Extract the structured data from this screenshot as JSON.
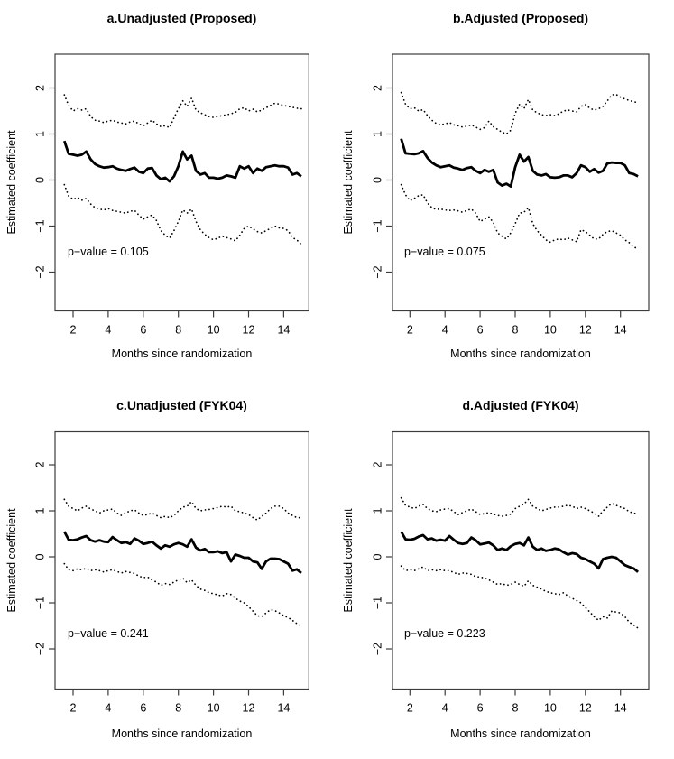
{
  "figure": {
    "background": "#ffffff",
    "line_color": "#000000",
    "frame_color": "#3c3c3c",
    "axes": {
      "xlabel": "Months since randomization",
      "ylabel": "Estimated coefficient",
      "x_ticks": [
        2,
        4,
        6,
        8,
        10,
        12,
        14
      ],
      "x_tick_labels": [
        "2",
        "4",
        "6",
        "8",
        "10",
        "12",
        "14"
      ],
      "y_ticks": [
        -2,
        -1,
        0,
        1,
        2
      ],
      "y_tick_labels": [
        "−2",
        "−1",
        "0",
        "1",
        "2"
      ]
    }
  },
  "x_months_shared": [
    1.5,
    1.75,
    2,
    2.25,
    2.5,
    2.75,
    3,
    3.25,
    3.5,
    3.75,
    4,
    4.25,
    4.5,
    4.75,
    5,
    5.25,
    5.5,
    5.75,
    6,
    6.25,
    6.5,
    6.75,
    7,
    7.25,
    7.5,
    7.75,
    8,
    8.25,
    8.5,
    8.75,
    9,
    9.25,
    9.5,
    9.75,
    10,
    10.25,
    10.5,
    10.75,
    11,
    11.25,
    11.5,
    11.75,
    12,
    12.25,
    12.5,
    12.75,
    13,
    13.25,
    13.5,
    13.75,
    14,
    14.25,
    14.5,
    14.75,
    15
  ],
  "chart_data": [
    {
      "type": "line",
      "panel": "a",
      "title": "a.Unadjusted (Proposed)",
      "p_annotation": "p−value = 0.105",
      "p_value": 0.105,
      "xlabel": "Months since randomization",
      "ylabel": "Estimated coefficient",
      "xlim": [
        1,
        15.5
      ],
      "ylim": [
        -2.85,
        2.75
      ],
      "legend": "none",
      "grid": false,
      "series": [
        {
          "name": "estimate",
          "style": "solid-thick",
          "values": [
            0.85,
            0.57,
            0.55,
            0.53,
            0.55,
            0.62,
            0.45,
            0.35,
            0.3,
            0.27,
            0.28,
            0.3,
            0.25,
            0.22,
            0.2,
            0.24,
            0.27,
            0.18,
            0.15,
            0.25,
            0.26,
            0.1,
            0.02,
            0.05,
            -0.03,
            0.08,
            0.3,
            0.62,
            0.45,
            0.53,
            0.2,
            0.12,
            0.15,
            0.05,
            0.05,
            0.03,
            0.05,
            0.1,
            0.08,
            0.05,
            0.3,
            0.25,
            0.3,
            0.15,
            0.25,
            0.2,
            0.28,
            0.3,
            0.32,
            0.3,
            0.3,
            0.27,
            0.12,
            0.15,
            0.08
          ]
        },
        {
          "name": "upper_ci",
          "style": "dotted",
          "values": [
            1.85,
            1.62,
            1.5,
            1.55,
            1.52,
            1.55,
            1.38,
            1.3,
            1.28,
            1.25,
            1.28,
            1.3,
            1.26,
            1.24,
            1.22,
            1.26,
            1.28,
            1.22,
            1.18,
            1.24,
            1.3,
            1.22,
            1.16,
            1.18,
            1.14,
            1.35,
            1.55,
            1.72,
            1.6,
            1.78,
            1.52,
            1.46,
            1.42,
            1.38,
            1.36,
            1.38,
            1.4,
            1.42,
            1.44,
            1.47,
            1.55,
            1.57,
            1.5,
            1.54,
            1.48,
            1.52,
            1.57,
            1.62,
            1.67,
            1.65,
            1.62,
            1.6,
            1.58,
            1.56,
            1.55
          ]
        },
        {
          "name": "lower_ci",
          "style": "dotted",
          "values": [
            -0.1,
            -0.35,
            -0.42,
            -0.38,
            -0.44,
            -0.4,
            -0.52,
            -0.6,
            -0.63,
            -0.65,
            -0.62,
            -0.66,
            -0.68,
            -0.7,
            -0.72,
            -0.68,
            -0.66,
            -0.76,
            -0.85,
            -0.8,
            -0.76,
            -0.88,
            -1.1,
            -1.2,
            -1.26,
            -1.1,
            -0.9,
            -0.65,
            -0.72,
            -0.63,
            -0.9,
            -1.08,
            -1.18,
            -1.25,
            -1.3,
            -1.26,
            -1.22,
            -1.25,
            -1.28,
            -1.32,
            -1.2,
            -1.05,
            -1.0,
            -1.06,
            -1.12,
            -1.15,
            -1.1,
            -1.05,
            -1.0,
            -1.04,
            -1.05,
            -1.1,
            -1.25,
            -1.3,
            -1.4
          ]
        }
      ]
    },
    {
      "type": "line",
      "panel": "b",
      "title": "b.Adjusted (Proposed)",
      "p_annotation": "p−value = 0.075",
      "p_value": 0.075,
      "xlabel": "Months since randomization",
      "ylabel": "Estimated coefficient",
      "xlim": [
        1,
        15.5
      ],
      "ylim": [
        -2.85,
        2.75
      ],
      "legend": "none",
      "grid": false,
      "series": [
        {
          "name": "estimate",
          "style": "solid-thick",
          "values": [
            0.9,
            0.58,
            0.57,
            0.56,
            0.58,
            0.63,
            0.48,
            0.38,
            0.32,
            0.28,
            0.3,
            0.32,
            0.27,
            0.25,
            0.22,
            0.26,
            0.28,
            0.2,
            0.15,
            0.22,
            0.18,
            0.22,
            -0.05,
            -0.12,
            -0.08,
            -0.14,
            0.28,
            0.55,
            0.4,
            0.5,
            0.2,
            0.12,
            0.1,
            0.13,
            0.06,
            0.05,
            0.06,
            0.1,
            0.1,
            0.06,
            0.15,
            0.32,
            0.28,
            0.18,
            0.24,
            0.16,
            0.2,
            0.36,
            0.38,
            0.37,
            0.37,
            0.32,
            0.15,
            0.13,
            0.08
          ]
        },
        {
          "name": "upper_ci",
          "style": "dotted",
          "values": [
            1.9,
            1.65,
            1.55,
            1.57,
            1.5,
            1.53,
            1.4,
            1.3,
            1.23,
            1.2,
            1.22,
            1.25,
            1.2,
            1.18,
            1.15,
            1.17,
            1.2,
            1.15,
            1.1,
            1.14,
            1.28,
            1.16,
            1.1,
            1.04,
            1.0,
            1.08,
            1.45,
            1.65,
            1.55,
            1.75,
            1.52,
            1.46,
            1.42,
            1.4,
            1.42,
            1.4,
            1.44,
            1.5,
            1.52,
            1.5,
            1.48,
            1.6,
            1.64,
            1.56,
            1.52,
            1.55,
            1.6,
            1.72,
            1.85,
            1.86,
            1.8,
            1.76,
            1.73,
            1.7,
            1.68
          ]
        },
        {
          "name": "lower_ci",
          "style": "dotted",
          "values": [
            -0.1,
            -0.32,
            -0.45,
            -0.4,
            -0.34,
            -0.32,
            -0.5,
            -0.6,
            -0.64,
            -0.63,
            -0.65,
            -0.66,
            -0.65,
            -0.67,
            -0.7,
            -0.66,
            -0.63,
            -0.72,
            -0.9,
            -0.85,
            -0.8,
            -0.92,
            -1.15,
            -1.22,
            -1.28,
            -1.15,
            -0.95,
            -0.72,
            -0.7,
            -0.6,
            -0.95,
            -1.1,
            -1.2,
            -1.3,
            -1.35,
            -1.3,
            -1.28,
            -1.3,
            -1.26,
            -1.3,
            -1.34,
            -1.08,
            -1.12,
            -1.2,
            -1.28,
            -1.28,
            -1.18,
            -1.12,
            -1.1,
            -1.15,
            -1.2,
            -1.3,
            -1.36,
            -1.45,
            -1.5
          ]
        }
      ]
    },
    {
      "type": "line",
      "panel": "c",
      "title": "c.Unadjusted (FYK04)",
      "p_annotation": "p−value = 0.241",
      "p_value": 0.241,
      "xlabel": "Months since randomization",
      "ylabel": "Estimated coefficient",
      "xlim": [
        1,
        15.5
      ],
      "ylim": [
        -2.85,
        2.75
      ],
      "legend": "none",
      "grid": false,
      "series": [
        {
          "name": "estimate",
          "style": "solid-thick",
          "values": [
            0.55,
            0.37,
            0.36,
            0.38,
            0.42,
            0.45,
            0.36,
            0.33,
            0.36,
            0.33,
            0.32,
            0.43,
            0.36,
            0.3,
            0.32,
            0.28,
            0.4,
            0.35,
            0.28,
            0.3,
            0.33,
            0.25,
            0.18,
            0.25,
            0.22,
            0.27,
            0.3,
            0.27,
            0.22,
            0.38,
            0.2,
            0.14,
            0.17,
            0.1,
            0.1,
            0.12,
            0.08,
            0.1,
            -0.1,
            0.05,
            0.02,
            -0.02,
            -0.02,
            -0.1,
            -0.12,
            -0.26,
            -0.1,
            -0.04,
            -0.04,
            -0.05,
            -0.1,
            -0.15,
            -0.3,
            -0.27,
            -0.35
          ]
        },
        {
          "name": "upper_ci",
          "style": "dotted",
          "values": [
            1.25,
            1.1,
            1.05,
            1.0,
            1.06,
            1.1,
            1.04,
            1.0,
            0.95,
            1.0,
            1.02,
            1.04,
            0.95,
            0.9,
            0.95,
            1.0,
            1.02,
            0.95,
            0.9,
            0.92,
            0.95,
            0.9,
            0.85,
            0.88,
            0.85,
            0.9,
            1.0,
            1.08,
            1.1,
            1.2,
            1.05,
            1.0,
            1.02,
            1.03,
            1.05,
            1.07,
            1.1,
            1.08,
            1.1,
            1.0,
            0.98,
            0.95,
            0.92,
            0.85,
            0.8,
            0.88,
            0.95,
            1.05,
            1.1,
            1.1,
            1.05,
            0.95,
            0.9,
            0.85,
            0.85
          ]
        },
        {
          "name": "lower_ci",
          "style": "dotted",
          "values": [
            -0.15,
            -0.28,
            -0.3,
            -0.26,
            -0.28,
            -0.25,
            -0.3,
            -0.28,
            -0.3,
            -0.33,
            -0.3,
            -0.28,
            -0.32,
            -0.35,
            -0.32,
            -0.34,
            -0.36,
            -0.42,
            -0.45,
            -0.44,
            -0.5,
            -0.55,
            -0.62,
            -0.58,
            -0.6,
            -0.55,
            -0.5,
            -0.46,
            -0.56,
            -0.5,
            -0.62,
            -0.7,
            -0.73,
            -0.78,
            -0.8,
            -0.83,
            -0.85,
            -0.8,
            -0.82,
            -0.9,
            -0.96,
            -1.0,
            -1.08,
            -1.18,
            -1.28,
            -1.3,
            -1.22,
            -1.15,
            -1.17,
            -1.22,
            -1.28,
            -1.32,
            -1.38,
            -1.45,
            -1.5
          ]
        }
      ]
    },
    {
      "type": "line",
      "panel": "d",
      "title": "d.Adjusted (FYK04)",
      "p_annotation": "p−value = 0.223",
      "p_value": 0.223,
      "xlabel": "Months since randomization",
      "ylabel": "Estimated coefficient",
      "xlim": [
        1,
        15.5
      ],
      "ylim": [
        -2.85,
        2.75
      ],
      "legend": "none",
      "grid": false,
      "series": [
        {
          "name": "estimate",
          "style": "solid-thick",
          "values": [
            0.55,
            0.38,
            0.37,
            0.39,
            0.44,
            0.47,
            0.38,
            0.4,
            0.35,
            0.37,
            0.35,
            0.45,
            0.37,
            0.3,
            0.28,
            0.3,
            0.42,
            0.36,
            0.27,
            0.29,
            0.31,
            0.25,
            0.15,
            0.18,
            0.15,
            0.23,
            0.28,
            0.3,
            0.25,
            0.42,
            0.22,
            0.15,
            0.18,
            0.13,
            0.15,
            0.18,
            0.16,
            0.1,
            0.05,
            0.08,
            0.06,
            -0.02,
            -0.05,
            -0.1,
            -0.15,
            -0.25,
            -0.05,
            -0.02,
            0.0,
            -0.02,
            -0.1,
            -0.18,
            -0.22,
            -0.25,
            -0.33
          ]
        },
        {
          "name": "upper_ci",
          "style": "dotted",
          "values": [
            1.28,
            1.12,
            1.08,
            1.05,
            1.1,
            1.14,
            1.05,
            1.0,
            0.98,
            1.02,
            1.04,
            1.05,
            0.98,
            0.92,
            0.96,
            1.0,
            1.04,
            0.98,
            0.92,
            0.94,
            0.96,
            0.93,
            0.9,
            0.88,
            0.9,
            0.93,
            1.05,
            1.1,
            1.15,
            1.25,
            1.1,
            1.05,
            1.0,
            1.03,
            1.06,
            1.08,
            1.08,
            1.1,
            1.12,
            1.1,
            1.05,
            1.08,
            1.05,
            1.0,
            0.95,
            0.88,
            1.0,
            1.08,
            1.16,
            1.12,
            1.08,
            1.05,
            0.98,
            0.95,
            0.93
          ]
        },
        {
          "name": "lower_ci",
          "style": "dotted",
          "values": [
            -0.2,
            -0.3,
            -0.28,
            -0.3,
            -0.26,
            -0.22,
            -0.3,
            -0.28,
            -0.3,
            -0.28,
            -0.3,
            -0.3,
            -0.34,
            -0.38,
            -0.35,
            -0.36,
            -0.38,
            -0.43,
            -0.44,
            -0.46,
            -0.5,
            -0.55,
            -0.6,
            -0.58,
            -0.62,
            -0.6,
            -0.55,
            -0.6,
            -0.64,
            -0.52,
            -0.62,
            -0.66,
            -0.7,
            -0.75,
            -0.78,
            -0.8,
            -0.82,
            -0.78,
            -0.85,
            -0.9,
            -0.95,
            -1.0,
            -1.1,
            -1.2,
            -1.3,
            -1.38,
            -1.3,
            -1.33,
            -1.18,
            -1.2,
            -1.22,
            -1.3,
            -1.42,
            -1.48,
            -1.55
          ]
        }
      ]
    }
  ]
}
